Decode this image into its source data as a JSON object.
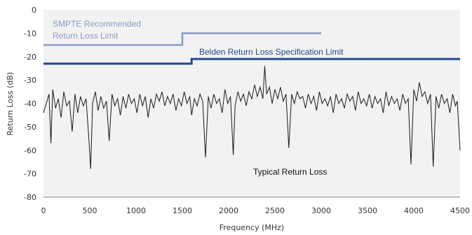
{
  "chart_data": {
    "type": "line",
    "xlabel": "Frequency (MHz)",
    "ylabel": "Return Loss (dB)",
    "xlim": [
      0,
      4500
    ],
    "ylim": [
      -80,
      0
    ],
    "x_ticks": [
      "0",
      "500",
      "1000",
      "1500",
      "2000",
      "2500",
      "3000",
      "3500",
      "4000",
      "4500"
    ],
    "y_ticks": [
      "0",
      "-10",
      "-20",
      "-30",
      "-40",
      "-50",
      "-60",
      "-70",
      "-80"
    ],
    "grid": false,
    "colors": {
      "smpte": "#8a9cc8",
      "belden": "#1f4b8f",
      "typical": "#1a1a1a",
      "axis": "#888888",
      "background": "#f2f2f2"
    },
    "series": [
      {
        "name": "SMPTE Recommended Return Loss Limit",
        "points": [
          [
            0,
            -15
          ],
          [
            1500,
            -15
          ],
          [
            1500,
            -10
          ],
          [
            3000,
            -10
          ]
        ]
      },
      {
        "name": "Belden Return Loss Specification Limit",
        "points": [
          [
            0,
            -23
          ],
          [
            1600,
            -23
          ],
          [
            1600,
            -21
          ],
          [
            4500,
            -21
          ]
        ]
      },
      {
        "name": "Typical Return Loss",
        "points": [
          [
            0,
            -44
          ],
          [
            30,
            -40
          ],
          [
            60,
            -36
          ],
          [
            80,
            -57
          ],
          [
            100,
            -34
          ],
          [
            130,
            -42
          ],
          [
            160,
            -38
          ],
          [
            190,
            -46
          ],
          [
            220,
            -35
          ],
          [
            250,
            -41
          ],
          [
            280,
            -39
          ],
          [
            310,
            -52
          ],
          [
            340,
            -36
          ],
          [
            370,
            -44
          ],
          [
            400,
            -37
          ],
          [
            430,
            -41
          ],
          [
            460,
            -38
          ],
          [
            490,
            -55
          ],
          [
            510,
            -68
          ],
          [
            530,
            -40
          ],
          [
            560,
            -35
          ],
          [
            590,
            -43
          ],
          [
            620,
            -37
          ],
          [
            650,
            -42
          ],
          [
            680,
            -39
          ],
          [
            710,
            -56
          ],
          [
            740,
            -36
          ],
          [
            770,
            -41
          ],
          [
            800,
            -38
          ],
          [
            830,
            -45
          ],
          [
            860,
            -37
          ],
          [
            890,
            -42
          ],
          [
            920,
            -36
          ],
          [
            950,
            -40
          ],
          [
            980,
            -38
          ],
          [
            1010,
            -44
          ],
          [
            1040,
            -36
          ],
          [
            1070,
            -41
          ],
          [
            1100,
            -37
          ],
          [
            1130,
            -46
          ],
          [
            1160,
            -38
          ],
          [
            1190,
            -42
          ],
          [
            1220,
            -36
          ],
          [
            1250,
            -39
          ],
          [
            1280,
            -35
          ],
          [
            1310,
            -41
          ],
          [
            1340,
            -37
          ],
          [
            1370,
            -40
          ],
          [
            1400,
            -36
          ],
          [
            1430,
            -43
          ],
          [
            1460,
            -38
          ],
          [
            1490,
            -41
          ],
          [
            1520,
            -35
          ],
          [
            1550,
            -40
          ],
          [
            1580,
            -37
          ],
          [
            1600,
            -45
          ],
          [
            1630,
            -38
          ],
          [
            1660,
            -41
          ],
          [
            1690,
            -36
          ],
          [
            1720,
            -39
          ],
          [
            1750,
            -63
          ],
          [
            1780,
            -37
          ],
          [
            1810,
            -42
          ],
          [
            1840,
            -36
          ],
          [
            1870,
            -40
          ],
          [
            1900,
            -38
          ],
          [
            1930,
            -44
          ],
          [
            1960,
            -34
          ],
          [
            1990,
            -40
          ],
          [
            2020,
            -37
          ],
          [
            2050,
            -62
          ],
          [
            2070,
            -41
          ],
          [
            2100,
            -35
          ],
          [
            2130,
            -39
          ],
          [
            2160,
            -36
          ],
          [
            2190,
            -41
          ],
          [
            2220,
            -35
          ],
          [
            2250,
            -38
          ],
          [
            2280,
            -32
          ],
          [
            2310,
            -37
          ],
          [
            2340,
            -33
          ],
          [
            2370,
            -38
          ],
          [
            2390,
            -24
          ],
          [
            2410,
            -36
          ],
          [
            2440,
            -33
          ],
          [
            2470,
            -40
          ],
          [
            2500,
            -34
          ],
          [
            2530,
            -38
          ],
          [
            2560,
            -33
          ],
          [
            2590,
            -39
          ],
          [
            2620,
            -36
          ],
          [
            2650,
            -59
          ],
          [
            2680,
            -36
          ],
          [
            2710,
            -40
          ],
          [
            2740,
            -35
          ],
          [
            2770,
            -38
          ],
          [
            2800,
            -37
          ],
          [
            2830,
            -42
          ],
          [
            2860,
            -36
          ],
          [
            2890,
            -40
          ],
          [
            2920,
            -37
          ],
          [
            2950,
            -43
          ],
          [
            2980,
            -35
          ],
          [
            3010,
            -40
          ],
          [
            3040,
            -38
          ],
          [
            3070,
            -41
          ],
          [
            3100,
            -37
          ],
          [
            3130,
            -44
          ],
          [
            3160,
            -36
          ],
          [
            3190,
            -40
          ],
          [
            3220,
            -38
          ],
          [
            3250,
            -42
          ],
          [
            3280,
            -36
          ],
          [
            3310,
            -39
          ],
          [
            3340,
            -37
          ],
          [
            3370,
            -43
          ],
          [
            3400,
            -35
          ],
          [
            3430,
            -40
          ],
          [
            3460,
            -38
          ],
          [
            3490,
            -41
          ],
          [
            3520,
            -36
          ],
          [
            3550,
            -42
          ],
          [
            3580,
            -37
          ],
          [
            3610,
            -40
          ],
          [
            3640,
            -38
          ],
          [
            3670,
            -44
          ],
          [
            3700,
            -35
          ],
          [
            3730,
            -41
          ],
          [
            3760,
            -37
          ],
          [
            3790,
            -40
          ],
          [
            3820,
            -38
          ],
          [
            3850,
            -43
          ],
          [
            3880,
            -36
          ],
          [
            3910,
            -40
          ],
          [
            3940,
            -38
          ],
          [
            3970,
            -66
          ],
          [
            4000,
            -34
          ],
          [
            4030,
            -39
          ],
          [
            4060,
            -31
          ],
          [
            4090,
            -37
          ],
          [
            4120,
            -35
          ],
          [
            4150,
            -40
          ],
          [
            4180,
            -36
          ],
          [
            4210,
            -67
          ],
          [
            4240,
            -37
          ],
          [
            4270,
            -42
          ],
          [
            4300,
            -36
          ],
          [
            4330,
            -40
          ],
          [
            4360,
            -38
          ],
          [
            4390,
            -44
          ],
          [
            4420,
            -36
          ],
          [
            4450,
            -41
          ],
          [
            4470,
            -39
          ],
          [
            4500,
            -60
          ]
        ]
      }
    ],
    "annotations": {
      "smpte_line1": "SMPTE Recommended",
      "smpte_line2": "Return Loss Limit",
      "belden": "Belden Return Loss Specification Limit",
      "typical": "Typical Return Loss"
    }
  }
}
